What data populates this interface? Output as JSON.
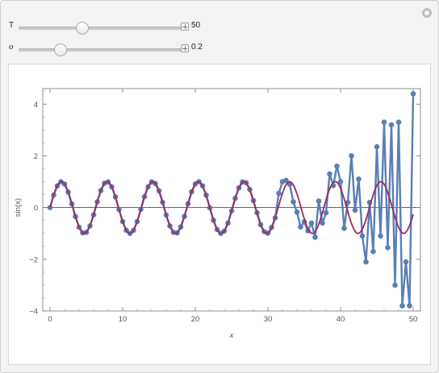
{
  "controls": {
    "T": {
      "label": "T",
      "value": "50",
      "fraction": 0.38
    },
    "omega": {
      "label": "ο",
      "value": "0.2",
      "fraction": 0.25
    }
  },
  "colors": {
    "points": "#5b7fb4",
    "curve": "#9e2a5d",
    "axis": "#444444"
  },
  "icons": [
    "reset-icon",
    "plus-icon"
  ],
  "chart_data": {
    "type": "line",
    "xlabel": "x",
    "ylabel": "sin(x)",
    "xlim": [
      -1,
      51
    ],
    "ylim": [
      -4,
      4.6
    ],
    "x_ticks": [
      "0",
      "10",
      "20",
      "30",
      "40",
      "50"
    ],
    "y_ticks": [
      "−4",
      "−2",
      "0",
      "2",
      "4"
    ],
    "series": [
      {
        "style": "points-joined",
        "x": [
          0,
          0.5,
          1,
          1.5,
          2,
          2.5,
          3,
          3.5,
          4,
          4.5,
          5,
          5.5,
          6,
          6.5,
          7,
          7.5,
          8,
          8.5,
          9,
          9.5,
          10,
          10.5,
          11,
          11.5,
          12,
          12.5,
          13,
          13.5,
          14,
          14.5,
          15,
          15.5,
          16,
          16.5,
          17,
          17.5,
          18,
          18.5,
          19,
          19.5,
          20,
          20.5,
          21,
          21.5,
          22,
          22.5,
          23,
          23.5,
          24,
          24.5,
          25,
          25.5,
          26,
          26.5,
          27,
          27.5,
          28,
          28.5,
          29,
          29.5,
          30,
          30.5,
          31,
          31.5,
          32,
          32.5,
          33,
          33.5,
          34,
          34.5,
          35,
          35.5,
          36,
          36.5,
          37,
          37.5,
          38,
          38.5,
          39,
          39.5,
          40,
          40.5,
          41,
          41.5,
          42,
          42.5,
          43,
          43.5,
          44,
          44.5,
          45,
          45.5,
          46,
          46.5,
          47,
          47.5,
          48,
          48.5,
          49,
          49.5,
          50
        ],
        "y": [
          0,
          0.48,
          0.84,
          1,
          0.91,
          0.6,
          0.14,
          -0.35,
          -0.76,
          -0.98,
          -0.96,
          -0.71,
          -0.28,
          0.22,
          0.66,
          0.94,
          0.99,
          0.8,
          0.41,
          -0.08,
          -0.54,
          -0.88,
          -1,
          -0.88,
          -0.54,
          -0.07,
          0.42,
          0.8,
          0.99,
          0.93,
          0.65,
          0.2,
          -0.29,
          -0.71,
          -0.96,
          -0.98,
          -0.75,
          -0.34,
          0.15,
          0.61,
          0.91,
          1,
          0.84,
          0.48,
          -0.01,
          -0.49,
          -0.85,
          -1,
          -0.91,
          -0.6,
          -0.13,
          0.36,
          0.76,
          0.99,
          0.96,
          0.7,
          0.27,
          -0.2,
          -0.66,
          -0.93,
          -0.99,
          -0.77,
          -0.4,
          0.55,
          1,
          1.05,
          0.9,
          0.22,
          -0.18,
          -0.75,
          -0.55,
          -0.9,
          -0.6,
          -1.15,
          0.25,
          -0.6,
          -0.2,
          1.3,
          0.85,
          1.6,
          1,
          -0.8,
          0.2,
          2,
          -0.1,
          1.1,
          -1.1,
          -2.1,
          0.2,
          -1.7,
          2.35,
          -1.1,
          3.3,
          -1.55,
          3.2,
          -3,
          3.3,
          -3.8,
          -2.1,
          -3.8,
          4.4
        ]
      },
      {
        "style": "curve",
        "function": "sin(x)",
        "x_range": [
          0,
          50
        ]
      }
    ]
  }
}
